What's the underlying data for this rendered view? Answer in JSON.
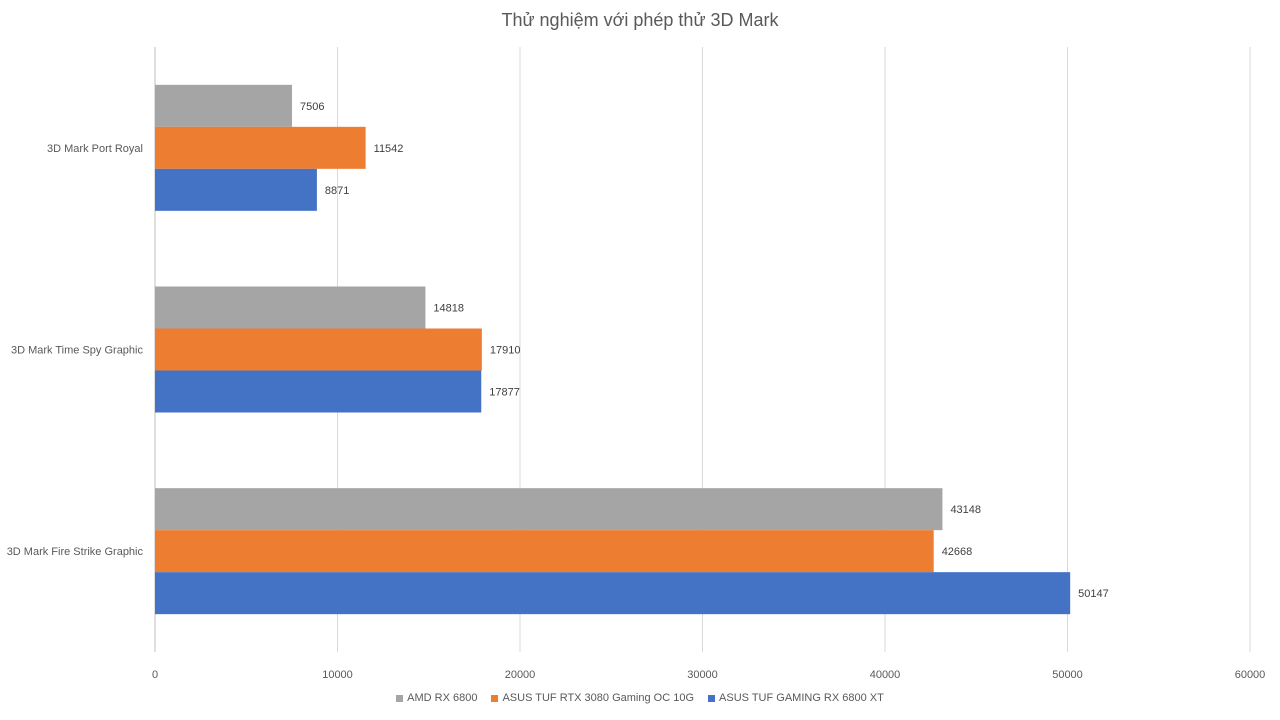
{
  "chart_data": {
    "type": "bar",
    "orientation": "horizontal",
    "title": "Thử nghiệm với phép thử 3D Mark",
    "categories": [
      "3D Mark Port Royal",
      "3D Mark Time Spy Graphic",
      "3D Mark Fire Strike Graphic"
    ],
    "series": [
      {
        "name": "AMD RX 6800",
        "color": "#a5a5a5",
        "values": [
          7506,
          14818,
          43148
        ]
      },
      {
        "name": "ASUS TUF RTX 3080 Gaming OC 10G",
        "color": "#ed7d31",
        "values": [
          11542,
          17910,
          42668
        ]
      },
      {
        "name": "ASUS TUF GAMING RX 6800 XT",
        "color": "#4472c4",
        "values": [
          8871,
          17877,
          50147
        ]
      }
    ],
    "xlim": [
      0,
      60000
    ],
    "xticks": [
      0,
      10000,
      20000,
      30000,
      40000,
      50000,
      60000
    ],
    "grid": true,
    "legend_position": "bottom",
    "data_labels": true
  }
}
